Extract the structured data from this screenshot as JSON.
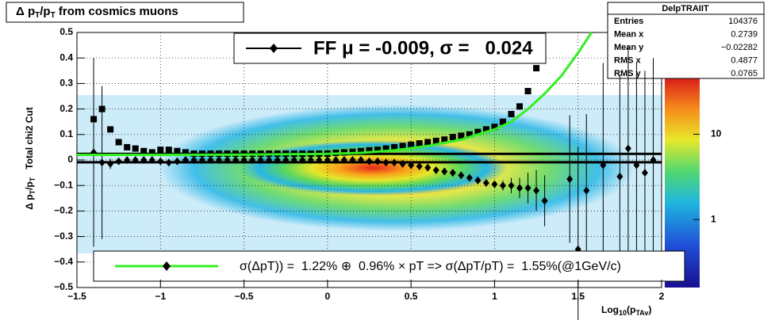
{
  "chart_data": {
    "type": "scatter",
    "title": [
      "Δ p",
      "T",
      "/p",
      "T",
      " from cosmics muons"
    ],
    "y_label": [
      "Δ p",
      "T",
      "/p",
      "T",
      "   Total chi2 Cut"
    ],
    "x_label": [
      "Log",
      "10",
      "(p",
      "TAv",
      ")"
    ],
    "xlim": [
      -1.5,
      2
    ],
    "ylim": [
      -0.5,
      0.5
    ],
    "xticks": [
      {
        "value": -1.5,
        "label": "−1.5"
      },
      {
        "value": -1,
        "label": "−1"
      },
      {
        "value": -0.5,
        "label": "−0.5"
      },
      0,
      0.5,
      1,
      1.5,
      2
    ],
    "yticks": [
      {
        "value": -0.5,
        "label": "−0.5"
      },
      {
        "value": -0.4,
        "label": "−0.4"
      },
      {
        "value": -0.3,
        "label": "−0.3"
      },
      {
        "value": -0.2,
        "label": "−0.2"
      },
      {
        "value": -0.1,
        "label": "−0.1"
      },
      0,
      0.1,
      0.2,
      0.3,
      0.4,
      0.5
    ],
    "grid": true,
    "series": [
      {
        "marker": "square",
        "color": "#000000",
        "x": [
          -1.4,
          -1.35,
          -1.3,
          -1.25,
          -1.2,
          -1.15,
          -1.1,
          -1.05,
          -1.0,
          -0.95,
          -0.9,
          -0.85,
          -0.8,
          -0.75,
          -0.7,
          -0.65,
          -0.6,
          -0.55,
          -0.5,
          -0.45,
          -0.4,
          -0.35,
          -0.3,
          -0.25,
          -0.2,
          -0.15,
          -0.1,
          -0.05,
          0,
          0.05,
          0.1,
          0.15,
          0.2,
          0.25,
          0.3,
          0.35,
          0.4,
          0.45,
          0.5,
          0.55,
          0.6,
          0.65,
          0.7,
          0.75,
          0.8,
          0.85,
          0.9,
          0.95,
          1.0,
          1.05,
          1.1,
          1.15,
          1.2,
          1.25
        ],
        "values": [
          0.16,
          0.2,
          0.12,
          0.07,
          0.05,
          0.045,
          0.035,
          0.03,
          0.04,
          0.04,
          0.035,
          0.03,
          0.025,
          0.025,
          0.025,
          0.025,
          0.025,
          0.025,
          0.025,
          0.025,
          0.025,
          0.025,
          0.025,
          0.025,
          0.025,
          0.025,
          0.025,
          0.025,
          0.025,
          0.028,
          0.03,
          0.032,
          0.035,
          0.038,
          0.04,
          0.045,
          0.05,
          0.055,
          0.06,
          0.065,
          0.07,
          0.075,
          0.08,
          0.09,
          0.095,
          0.1,
          0.11,
          0.12,
          0.13,
          0.15,
          0.18,
          0.21,
          0.27,
          0.36
        ]
      },
      {
        "marker": "diamond",
        "color": "#000000",
        "x": [
          -1.4,
          -1.35,
          -1.3,
          -1.25,
          -1.2,
          -1.15,
          -1.1,
          -1.05,
          -1.0,
          -0.95,
          -0.9,
          -0.85,
          -0.8,
          -0.75,
          -0.7,
          -0.65,
          -0.6,
          -0.55,
          -0.5,
          -0.45,
          -0.4,
          -0.35,
          -0.3,
          -0.25,
          -0.2,
          -0.15,
          -0.1,
          -0.05,
          0,
          0.05,
          0.1,
          0.15,
          0.2,
          0.25,
          0.3,
          0.35,
          0.4,
          0.45,
          0.5,
          0.55,
          0.6,
          0.65,
          0.7,
          0.75,
          0.8,
          0.85,
          0.9,
          0.95,
          1.0,
          1.05,
          1.1,
          1.15,
          1.2,
          1.25,
          1.3,
          1.45,
          1.5,
          1.55,
          1.65,
          1.75,
          1.8,
          1.85,
          1.9,
          1.95
        ],
        "values": [
          0.03,
          -0.01,
          -0.015,
          -0.005,
          0,
          0,
          0,
          0,
          -0.005,
          -0.01,
          -0.005,
          0,
          0,
          0,
          0,
          0,
          0,
          0,
          0,
          0,
          0,
          0,
          0,
          0,
          0,
          0,
          0,
          0,
          0,
          0,
          0,
          0,
          0,
          -0.005,
          -0.005,
          -0.01,
          -0.01,
          -0.015,
          -0.02,
          -0.025,
          -0.03,
          -0.04,
          -0.045,
          -0.05,
          -0.06,
          -0.07,
          -0.08,
          -0.09,
          -0.095,
          -0.1,
          -0.1,
          -0.11,
          -0.11,
          -0.12,
          -0.16,
          -0.075,
          -0.35,
          -0.12,
          -0.02,
          -0.065,
          0.045,
          -0.02,
          -0.05,
          0
        ],
        "errors": [
          0.37,
          0.3,
          0.02,
          0.01,
          0.01,
          0.01,
          0.01,
          0.01,
          0.01,
          0.01,
          0.01,
          0.01,
          0.01,
          0.01,
          0.01,
          0.01,
          0.01,
          0.01,
          0.01,
          0.01,
          0.01,
          0.01,
          0.01,
          0.01,
          0.01,
          0.01,
          0.01,
          0.01,
          0.01,
          0.01,
          0.01,
          0.01,
          0.01,
          0.01,
          0.01,
          0.01,
          0.01,
          0.01,
          0.01,
          0.01,
          0.01,
          0.01,
          0.01,
          0.01,
          0.01,
          0.01,
          0.01,
          0.01,
          0.01,
          0.02,
          0.03,
          0.04,
          0.06,
          0.08,
          0.1,
          0.25,
          0.4,
          0.3,
          0.4,
          0.4,
          0.4,
          0.4,
          0.4,
          0.4
        ]
      },
      {
        "marker": "line",
        "color": "#33ee22",
        "x": [
          -1.5,
          -1,
          -0.5,
          0,
          0.2,
          0.4,
          0.6,
          0.8,
          1.0,
          1.1,
          1.2,
          1.3,
          1.4,
          1.5,
          1.58
        ],
        "values": [
          0.02,
          0.02,
          0.021,
          0.024,
          0.028,
          0.038,
          0.055,
          0.08,
          0.12,
          0.15,
          0.2,
          0.26,
          0.33,
          0.42,
          0.5
        ]
      }
    ],
    "hlines": [
      0.024,
      -0.009
    ],
    "legend_top": "FF μ = -0.009, σ =   0.024",
    "legend_bottom": "σ(ΔpT)) =  1.22% ⊕  0.96% × pT => σ(ΔpT/pT) =  1.55%(@1GeV/c)",
    "zlim": [
      0.16,
      47
    ],
    "zticks": [
      1,
      10
    ],
    "zlog": true,
    "stats": {
      "name": "DelpTRAIIT",
      "rows": [
        {
          "label": "Entries",
          "value": "104376"
        },
        {
          "label": "Mean x",
          "value": "0.2739"
        },
        {
          "label": "Mean y",
          "value": "−0.02282"
        },
        {
          "label": "RMS x",
          "value": "0.4877"
        },
        {
          "label": "RMS y",
          "value": "0.0765"
        }
      ]
    }
  }
}
